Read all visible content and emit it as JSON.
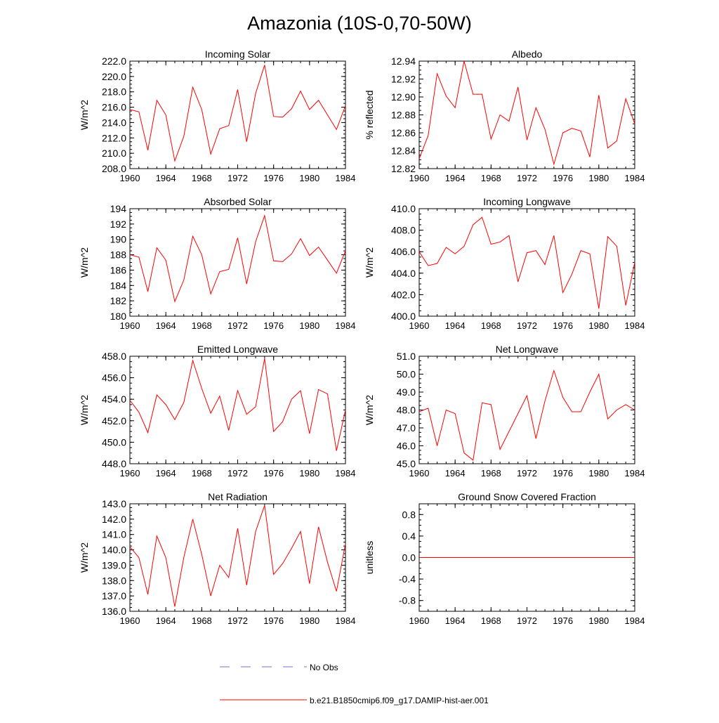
{
  "title": "Amazonia (10S-0,70-50W)",
  "legend": {
    "entries": [
      {
        "label": "No Obs",
        "style": "dashed",
        "color": "#6b74c8"
      },
      {
        "label": "b.e21.B1850cmip6.f09_g17.DAMIP-hist-aer.001",
        "style": "solid",
        "color": "#ff0000"
      }
    ]
  },
  "chart_data": [
    {
      "type": "line",
      "title": "Incoming Solar",
      "xlabel": "",
      "ylabel": "W/m^2",
      "xlim": [
        1960,
        1984
      ],
      "ylim": [
        208.0,
        222.0
      ],
      "xticks": [
        "1960",
        "1964",
        "1968",
        "1972",
        "1976",
        "1980",
        "1984"
      ],
      "yticks": [
        "208.0",
        "210.0",
        "212.0",
        "214.0",
        "216.0",
        "218.0",
        "220.0",
        "222.0"
      ],
      "x": [
        1960,
        1961,
        1962,
        1963,
        1964,
        1965,
        1966,
        1967,
        1968,
        1969,
        1970,
        1971,
        1972,
        1973,
        1974,
        1975,
        1976,
        1977,
        1978,
        1979,
        1980,
        1981,
        1982,
        1983,
        1984
      ],
      "series": [
        {
          "color": "#ff0000",
          "values": [
            215.7,
            215.4,
            210.4,
            216.9,
            215.0,
            209.0,
            212.2,
            218.6,
            215.7,
            209.9,
            213.2,
            213.6,
            218.3,
            211.5,
            217.8,
            221.5,
            214.8,
            214.7,
            215.8,
            218.1,
            215.7,
            216.9,
            215.0,
            213.1,
            216.2
          ]
        }
      ]
    },
    {
      "type": "line",
      "title": "Albedo",
      "xlabel": "",
      "ylabel": "% reflected",
      "xlim": [
        1960,
        1984
      ],
      "ylim": [
        12.82,
        12.94
      ],
      "xticks": [
        "1960",
        "1964",
        "1968",
        "1972",
        "1976",
        "1980",
        "1984"
      ],
      "yticks": [
        "12.82",
        "12.84",
        "12.86",
        "12.88",
        "12.90",
        "12.92",
        "12.94"
      ],
      "x": [
        1960,
        1961,
        1962,
        1963,
        1964,
        1965,
        1966,
        1967,
        1968,
        1969,
        1970,
        1971,
        1972,
        1973,
        1974,
        1975,
        1976,
        1977,
        1978,
        1979,
        1980,
        1981,
        1982,
        1983,
        1984
      ],
      "series": [
        {
          "color": "#ff0000",
          "values": [
            12.831,
            12.857,
            12.926,
            12.901,
            12.888,
            12.94,
            12.903,
            12.903,
            12.853,
            12.88,
            12.873,
            12.911,
            12.852,
            12.888,
            12.864,
            12.825,
            12.86,
            12.865,
            12.862,
            12.833,
            12.902,
            12.843,
            12.851,
            12.898,
            12.87
          ]
        }
      ]
    },
    {
      "type": "line",
      "title": "Absorbed Solar",
      "xlabel": "",
      "ylabel": "W/m^2",
      "xlim": [
        1960,
        1984
      ],
      "ylim": [
        180,
        194
      ],
      "xticks": [
        "1960",
        "1964",
        "1968",
        "1972",
        "1976",
        "1980",
        "1984"
      ],
      "yticks": [
        "180",
        "182",
        "184",
        "186",
        "188",
        "190",
        "192",
        "194"
      ],
      "x": [
        1960,
        1961,
        1962,
        1963,
        1964,
        1965,
        1966,
        1967,
        1968,
        1969,
        1970,
        1971,
        1972,
        1973,
        1974,
        1975,
        1976,
        1977,
        1978,
        1979,
        1980,
        1981,
        1982,
        1983,
        1984
      ],
      "series": [
        {
          "color": "#ff0000",
          "values": [
            188.0,
            187.7,
            183.2,
            188.9,
            187.3,
            181.9,
            184.7,
            190.4,
            188.0,
            182.9,
            185.8,
            186.1,
            190.2,
            184.2,
            189.7,
            193.1,
            187.2,
            187.1,
            188.1,
            190.1,
            187.9,
            189.0,
            187.3,
            185.6,
            188.5
          ]
        }
      ]
    },
    {
      "type": "line",
      "title": "Incoming Longwave",
      "xlabel": "",
      "ylabel": "W/m^2",
      "xlim": [
        1960,
        1984
      ],
      "ylim": [
        400.0,
        410.0
      ],
      "xticks": [
        "1960",
        "1964",
        "1968",
        "1972",
        "1976",
        "1980",
        "1984"
      ],
      "yticks": [
        "400.0",
        "402.0",
        "404.0",
        "406.0",
        "408.0",
        "410.0"
      ],
      "x": [
        1960,
        1961,
        1962,
        1963,
        1964,
        1965,
        1966,
        1967,
        1968,
        1969,
        1970,
        1971,
        1972,
        1973,
        1974,
        1975,
        1976,
        1977,
        1978,
        1979,
        1980,
        1981,
        1982,
        1983,
        1984
      ],
      "series": [
        {
          "color": "#ff0000",
          "values": [
            406.0,
            404.7,
            404.9,
            406.4,
            405.8,
            406.5,
            408.5,
            409.2,
            406.7,
            406.9,
            407.5,
            403.2,
            405.9,
            406.1,
            404.8,
            407.5,
            402.2,
            403.9,
            406.1,
            405.8,
            400.7,
            407.4,
            406.5,
            401.0,
            405.0
          ]
        }
      ]
    },
    {
      "type": "line",
      "title": "Emitted Longwave",
      "xlabel": "",
      "ylabel": "W/m^2",
      "xlim": [
        1960,
        1984
      ],
      "ylim": [
        448.0,
        458.0
      ],
      "xticks": [
        "1960",
        "1964",
        "1968",
        "1972",
        "1976",
        "1980",
        "1984"
      ],
      "yticks": [
        "448.0",
        "450.0",
        "452.0",
        "454.0",
        "456.0",
        "458.0"
      ],
      "x": [
        1960,
        1961,
        1962,
        1963,
        1964,
        1965,
        1966,
        1967,
        1968,
        1969,
        1970,
        1971,
        1972,
        1973,
        1974,
        1975,
        1976,
        1977,
        1978,
        1979,
        1980,
        1981,
        1982,
        1983,
        1984
      ],
      "series": [
        {
          "color": "#ff0000",
          "values": [
            453.9,
            452.8,
            450.9,
            454.4,
            453.5,
            452.1,
            453.7,
            457.6,
            455.0,
            452.7,
            454.3,
            451.1,
            454.8,
            452.6,
            453.3,
            457.8,
            451.0,
            451.9,
            454.0,
            454.8,
            450.8,
            454.9,
            454.5,
            449.2,
            453.0
          ]
        }
      ]
    },
    {
      "type": "line",
      "title": "Net Longwave",
      "xlabel": "",
      "ylabel": "W/m^2",
      "xlim": [
        1960,
        1984
      ],
      "ylim": [
        45.0,
        51.0
      ],
      "xticks": [
        "1960",
        "1964",
        "1968",
        "1972",
        "1976",
        "1980",
        "1984"
      ],
      "yticks": [
        "45.0",
        "46.0",
        "47.0",
        "48.0",
        "49.0",
        "50.0",
        "51.0"
      ],
      "x": [
        1960,
        1961,
        1962,
        1963,
        1964,
        1965,
        1966,
        1967,
        1968,
        1969,
        1970,
        1971,
        1972,
        1973,
        1974,
        1975,
        1976,
        1977,
        1978,
        1979,
        1980,
        1981,
        1982,
        1983,
        1984
      ],
      "series": [
        {
          "color": "#ff0000",
          "values": [
            47.9,
            48.1,
            46.0,
            48.0,
            47.8,
            45.6,
            45.2,
            48.4,
            48.3,
            45.8,
            46.8,
            47.8,
            48.8,
            46.4,
            48.5,
            50.2,
            48.7,
            47.9,
            47.9,
            49.0,
            50.0,
            47.5,
            48.0,
            48.3,
            48.0
          ]
        }
      ]
    },
    {
      "type": "line",
      "title": "Net Radiation",
      "xlabel": "",
      "ylabel": "W/m^2",
      "xlim": [
        1960,
        1984
      ],
      "ylim": [
        136.0,
        143.0
      ],
      "xticks": [
        "1960",
        "1964",
        "1968",
        "1972",
        "1976",
        "1980",
        "1984"
      ],
      "yticks": [
        "136.0",
        "137.0",
        "138.0",
        "139.0",
        "140.0",
        "141.0",
        "142.0",
        "143.0"
      ],
      "x": [
        1960,
        1961,
        1962,
        1963,
        1964,
        1965,
        1966,
        1967,
        1968,
        1969,
        1970,
        1971,
        1972,
        1973,
        1974,
        1975,
        1976,
        1977,
        1978,
        1979,
        1980,
        1981,
        1982,
        1983,
        1984
      ],
      "series": [
        {
          "color": "#ff0000",
          "values": [
            140.2,
            139.5,
            137.1,
            140.9,
            139.5,
            136.3,
            139.5,
            142.0,
            139.7,
            137.0,
            139.0,
            138.2,
            141.4,
            137.7,
            141.2,
            142.9,
            138.4,
            139.1,
            140.1,
            141.2,
            137.8,
            141.5,
            139.2,
            137.3,
            140.4
          ]
        }
      ]
    },
    {
      "type": "line",
      "title": "Ground Snow Covered Fraction",
      "xlabel": "",
      "ylabel": "unitless",
      "xlim": [
        1960,
        1984
      ],
      "ylim": [
        -1.0,
        1.0
      ],
      "xticks": [
        "1960",
        "1964",
        "1968",
        "1972",
        "1976",
        "1980",
        "1984"
      ],
      "yticks": [
        "-0.8",
        "-0.4",
        "0.0",
        "0.4",
        "0.8"
      ],
      "x": [
        1960,
        1961,
        1962,
        1963,
        1964,
        1965,
        1966,
        1967,
        1968,
        1969,
        1970,
        1971,
        1972,
        1973,
        1974,
        1975,
        1976,
        1977,
        1978,
        1979,
        1980,
        1981,
        1982,
        1983,
        1984
      ],
      "series": [
        {
          "color": "#ff0000",
          "values": [
            0,
            0,
            0,
            0,
            0,
            0,
            0,
            0,
            0,
            0,
            0,
            0,
            0,
            0,
            0,
            0,
            0,
            0,
            0,
            0,
            0,
            0,
            0,
            0,
            0
          ]
        }
      ]
    }
  ]
}
